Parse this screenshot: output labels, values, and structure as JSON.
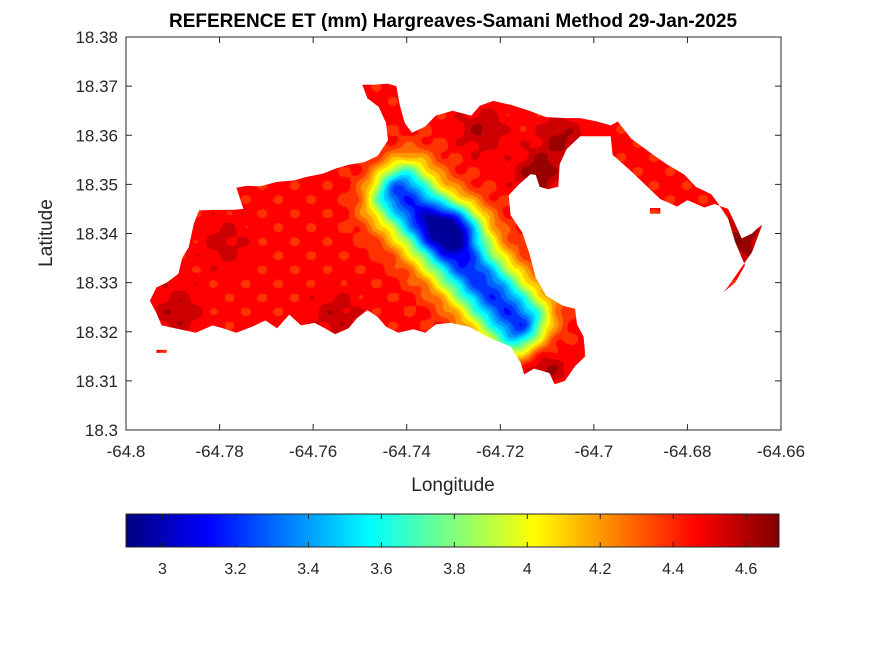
{
  "chart_data": {
    "type": "heatmap",
    "title": "REFERENCE ET (mm) Hargreaves-Samani Method  29-Jan-2025",
    "xlabel": "Longitude",
    "ylabel": "Latitude",
    "xlim": [
      -64.8,
      -64.66
    ],
    "ylim": [
      18.3,
      18.38
    ],
    "xticks": [
      -64.8,
      -64.78,
      -64.76,
      -64.74,
      -64.72,
      -64.7,
      -64.68,
      -64.66
    ],
    "xtick_labels": [
      "-64.8",
      "-64.78",
      "-64.76",
      "-64.74",
      "-64.72",
      "-64.7",
      "-64.68",
      "-64.66"
    ],
    "yticks": [
      18.3,
      18.31,
      18.32,
      18.33,
      18.34,
      18.35,
      18.36,
      18.37,
      18.38
    ],
    "ytick_labels": [
      "18.3",
      "18.31",
      "18.32",
      "18.33",
      "18.34",
      "18.35",
      "18.36",
      "18.37",
      "18.38"
    ],
    "colormap": "jet",
    "colorbar": {
      "orientation": "horizontal",
      "location": "below",
      "clim": [
        2.9,
        4.69
      ],
      "ticks": [
        3,
        3.2,
        3.4,
        3.6,
        3.8,
        4,
        4.2,
        4.4,
        4.6
      ],
      "tick_labels": [
        "3",
        "3.2",
        "3.4",
        "3.6",
        "3.8",
        "4",
        "4.2",
        "4.4",
        "4.6"
      ]
    },
    "field": {
      "background_value": 4.45,
      "minimum": {
        "lon": -64.7295,
        "lat": 18.3415,
        "value": 2.92
      },
      "trough_axis_from": {
        "lon": -64.7415,
        "lat": 18.3485
      },
      "trough_axis_to": {
        "lon": -64.716,
        "lat": 18.3215
      },
      "hotspots": [
        {
          "lon": -64.712,
          "lat": 18.352,
          "value": 4.65
        },
        {
          "lon": -64.707,
          "lat": 18.359,
          "value": 4.62
        },
        {
          "lon": -64.668,
          "lat": 18.339,
          "value": 4.68
        },
        {
          "lon": -64.711,
          "lat": 18.312,
          "value": 4.64
        },
        {
          "lon": -64.779,
          "lat": 18.338,
          "value": 4.55
        },
        {
          "lon": -64.789,
          "lat": 18.324,
          "value": 4.6
        },
        {
          "lon": -64.755,
          "lat": 18.323,
          "value": 4.58
        },
        {
          "lon": -64.724,
          "lat": 18.361,
          "value": 4.6
        }
      ]
    },
    "land_outline": [
      [
        -64.7935,
        18.3238
      ],
      [
        -64.7924,
        18.3213
      ],
      [
        -64.7851,
        18.3198
      ],
      [
        -64.7815,
        18.3213
      ],
      [
        -64.7793,
        18.3207
      ],
      [
        -64.7764,
        18.3198
      ],
      [
        -64.7731,
        18.321
      ],
      [
        -64.7702,
        18.3223
      ],
      [
        -64.7677,
        18.3207
      ],
      [
        -64.7651,
        18.3235
      ],
      [
        -64.7626,
        18.3213
      ],
      [
        -64.7597,
        18.3218
      ],
      [
        -64.7575,
        18.3207
      ],
      [
        -64.7553,
        18.3195
      ],
      [
        -64.7524,
        18.3207
      ],
      [
        -64.7506,
        18.3228
      ],
      [
        -64.7484,
        18.3244
      ],
      [
        -64.7462,
        18.323
      ],
      [
        -64.7444,
        18.321
      ],
      [
        -64.7418,
        18.3198
      ],
      [
        -64.7386,
        18.3205
      ],
      [
        -64.736,
        18.3198
      ],
      [
        -64.7338,
        18.3215
      ],
      [
        -64.7306,
        18.3218
      ],
      [
        -64.7266,
        18.321
      ],
      [
        -64.7222,
        18.3187
      ],
      [
        -64.7178,
        18.317
      ],
      [
        -64.7156,
        18.3136
      ],
      [
        -64.7149,
        18.3113
      ],
      [
        -64.7128,
        18.3125
      ],
      [
        -64.7095,
        18.3116
      ],
      [
        -64.7084,
        18.3093
      ],
      [
        -64.7062,
        18.31
      ],
      [
        -64.704,
        18.313
      ],
      [
        -64.7018,
        18.315
      ],
      [
        -64.7022,
        18.319
      ],
      [
        -64.7036,
        18.3215
      ],
      [
        -64.704,
        18.3247
      ],
      [
        -64.7066,
        18.3253
      ],
      [
        -64.7102,
        18.3273
      ],
      [
        -64.7124,
        18.331
      ],
      [
        -64.7138,
        18.336
      ],
      [
        -64.7153,
        18.3402
      ],
      [
        -64.7178,
        18.3437
      ],
      [
        -64.7182,
        18.3478
      ],
      [
        -64.716,
        18.35
      ],
      [
        -64.7135,
        18.3521
      ],
      [
        -64.7124,
        18.3519
      ],
      [
        -64.7116,
        18.3495
      ],
      [
        -64.7098,
        18.349
      ],
      [
        -64.7076,
        18.3495
      ],
      [
        -64.7073,
        18.3541
      ],
      [
        -64.7058,
        18.3572
      ],
      [
        -64.7029,
        18.3598
      ],
      [
        -64.6993,
        18.3598
      ],
      [
        -64.6964,
        18.3598
      ],
      [
        -64.696,
        18.356
      ],
      [
        -64.6924,
        18.353
      ],
      [
        -64.6891,
        18.35
      ],
      [
        -64.6858,
        18.347
      ],
      [
        -64.6822,
        18.3455
      ],
      [
        -64.68,
        18.3468
      ],
      [
        -64.6764,
        18.3453
      ],
      [
        -64.6742,
        18.346
      ],
      [
        -64.6713,
        18.345
      ],
      [
        -64.6698,
        18.342
      ],
      [
        -64.6684,
        18.339
      ],
      [
        -64.6662,
        18.34
      ],
      [
        -64.6651,
        18.341
      ],
      [
        -64.664,
        18.3418
      ],
      [
        -64.6662,
        18.3362
      ],
      [
        -64.6691,
        18.3322
      ],
      [
        -64.6713,
        18.3292
      ],
      [
        -64.6724,
        18.328
      ],
      [
        -64.6698,
        18.33
      ],
      [
        -64.6677,
        18.3335
      ],
      [
        -64.6698,
        18.3382
      ],
      [
        -64.6713,
        18.343
      ],
      [
        -64.6735,
        18.3462
      ],
      [
        -64.6749,
        18.348
      ],
      [
        -64.6782,
        18.3495
      ],
      [
        -64.6807,
        18.352
      ],
      [
        -64.6844,
        18.3541
      ],
      [
        -64.6873,
        18.356
      ],
      [
        -64.692,
        18.3593
      ],
      [
        -64.6949,
        18.3628
      ],
      [
        -64.6964,
        18.362
      ],
      [
        -64.6993,
        18.3628
      ],
      [
        -64.7029,
        18.3635
      ],
      [
        -64.7058,
        18.3635
      ],
      [
        -64.7102,
        18.3637
      ],
      [
        -64.7138,
        18.365
      ],
      [
        -64.7178,
        18.3662
      ],
      [
        -64.7215,
        18.367
      ],
      [
        -64.7244,
        18.366
      ],
      [
        -64.7262,
        18.364
      ],
      [
        -64.7302,
        18.365
      ],
      [
        -64.7338,
        18.364
      ],
      [
        -64.736,
        18.3618
      ],
      [
        -64.7389,
        18.3605
      ],
      [
        -64.7404,
        18.3625
      ],
      [
        -64.7415,
        18.3662
      ],
      [
        -64.7422,
        18.37
      ],
      [
        -64.744,
        18.3705
      ],
      [
        -64.7471,
        18.3703
      ],
      [
        -64.7495,
        18.3703
      ],
      [
        -64.7484,
        18.3675
      ],
      [
        -64.746,
        18.3658
      ],
      [
        -64.7444,
        18.3625
      ],
      [
        -64.744,
        18.359
      ],
      [
        -64.7462,
        18.3558
      ],
      [
        -64.7491,
        18.3545
      ],
      [
        -64.7524,
        18.354
      ],
      [
        -64.7553,
        18.3532
      ],
      [
        -64.7579,
        18.3522
      ],
      [
        -64.7615,
        18.3515
      ],
      [
        -64.764,
        18.3508
      ],
      [
        -64.7677,
        18.3505
      ],
      [
        -64.7713,
        18.3496
      ],
      [
        -64.7742,
        18.3497
      ],
      [
        -64.7764,
        18.3493
      ],
      [
        -64.7749,
        18.345
      ],
      [
        -64.7771,
        18.3448
      ],
      [
        -64.7811,
        18.3448
      ],
      [
        -64.7844,
        18.3447
      ],
      [
        -64.7855,
        18.342
      ],
      [
        -64.7866,
        18.3372
      ],
      [
        -64.788,
        18.335
      ],
      [
        -64.7888,
        18.3318
      ],
      [
        -64.7913,
        18.33
      ],
      [
        -64.7935,
        18.329
      ],
      [
        -64.7949,
        18.3263
      ]
    ],
    "islets": [
      [
        [
          -64.7935,
          18.3163
        ],
        [
          -64.7913,
          18.3163
        ],
        [
          -64.7913,
          18.3157
        ],
        [
          -64.7935,
          18.3157
        ]
      ],
      [
        [
          -64.688,
          18.3452
        ],
        [
          -64.6858,
          18.3452
        ],
        [
          -64.6858,
          18.344
        ],
        [
          -64.688,
          18.344
        ]
      ]
    ]
  }
}
